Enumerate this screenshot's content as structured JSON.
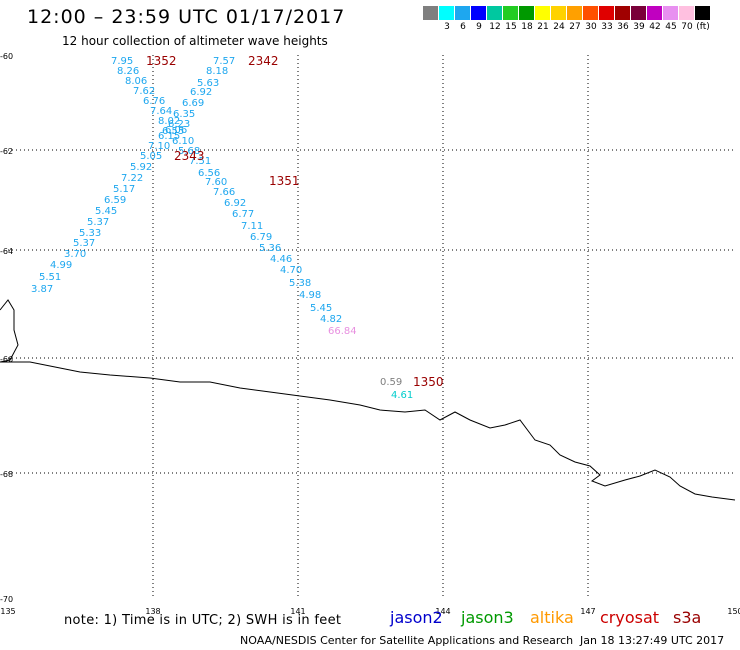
{
  "header": {
    "title": "12:00 – 23:59 UTC 01/17/2017",
    "subtitle": "12 hour collection of altimeter wave heights"
  },
  "colorbar": {
    "colors": [
      "#7f7f7f",
      "#00ffff",
      "#1ea7ef",
      "#0000ff",
      "#00c8a0",
      "#22cc22",
      "#009900",
      "#ffff00",
      "#ffd200",
      "#ffa000",
      "#ff5000",
      "#e00000",
      "#a00000",
      "#7a003a",
      "#c000c0",
      "#e890f0",
      "#ffc0e0",
      "#000000"
    ],
    "labels": [
      "3",
      "6",
      "9",
      "12",
      "15",
      "18",
      "21",
      "24",
      "27",
      "30",
      "33",
      "36",
      "39",
      "42",
      "45",
      "70",
      "(ft)"
    ]
  },
  "axes": {
    "lat_ticks": [
      "-60",
      "-62",
      "-64",
      "-66",
      "-68",
      "-70"
    ],
    "lon_ticks": [
      "135",
      "138",
      "141",
      "144",
      "147",
      "150"
    ]
  },
  "tracks": {
    "tracks": [
      {
        "time": "1352",
        "color": "#1ea7ef",
        "values": [
          "7.95",
          "8.26",
          "8.06",
          "7.62",
          "6.76",
          "7.64",
          "8.02",
          "6.55",
          "6.15",
          "7.10",
          "5.05",
          "5.92",
          "7.22",
          "5.17",
          "6.59",
          "5.45",
          "5.37",
          "5.33",
          "5.37",
          "3.70",
          "4.99",
          "5.51",
          "3.87"
        ]
      },
      {
        "time": "2342",
        "color": "#1ea7ef",
        "values": [
          "7.57",
          "8.18",
          "5.63",
          "6.92",
          "6.69",
          "6.35",
          "6.23",
          "6.06",
          "6.10"
        ]
      },
      {
        "time": "2343",
        "color": "#1ea7ef",
        "values": [
          "5.68",
          "7.51",
          "6.56",
          "7.60",
          "7.66"
        ]
      },
      {
        "time": "1351",
        "color": "#1ea7ef",
        "values": [
          "6.92",
          "6.77",
          "7.11",
          "6.79",
          "5.36",
          "4.46",
          "4.70",
          "5.38",
          "4.98",
          "5.45",
          "4.82",
          "66.84"
        ]
      },
      {
        "time": "1350",
        "color": "#00cccc",
        "values": [
          "0.59",
          "4.61"
        ]
      }
    ]
  },
  "notes": {
    "note": "note:  1) Time is in UTC;  2) SWH is in feet",
    "credit": "NOAA/NESDIS Center for Satellite Applications and Research",
    "timestamp": "Jan 18 13:27:49 UTC 2017"
  },
  "legend": [
    {
      "name": "jason2",
      "color": "#0000cc"
    },
    {
      "name": "jason3",
      "color": "#009900"
    },
    {
      "name": "altika",
      "color": "#ff9900"
    },
    {
      "name": "cryosat",
      "color": "#cc0000"
    },
    {
      "name": "s3a",
      "color": "#990000"
    }
  ]
}
